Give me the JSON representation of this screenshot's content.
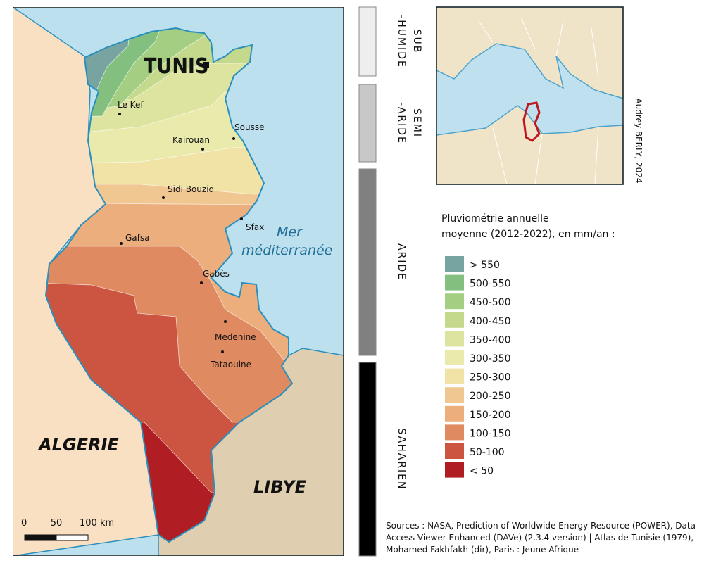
{
  "map": {
    "capital": "TUNIS",
    "cities": [
      "Le Kef",
      "Kairouan",
      "Sousse",
      "Sidi Bouzid",
      "Sfax",
      "Gafsa",
      "Gabès",
      "Medenine",
      "Tataouine"
    ],
    "sea": [
      "Mer",
      "méditerranée"
    ],
    "countries": [
      "ALGERIE",
      "LIBYE"
    ],
    "scale": [
      "0",
      "50",
      "100 km"
    ]
  },
  "climate_zones": [
    {
      "lines": [
        "SUB",
        "-HUMIDE"
      ],
      "color": "#eeeeee"
    },
    {
      "lines": [
        "SEMI",
        "-ARIDE"
      ],
      "color": "#c8c8c8"
    },
    {
      "lines": [
        "ARIDE"
      ],
      "color": "#808080"
    },
    {
      "lines": [
        "SAHARIEN"
      ],
      "color": "#000000"
    }
  ],
  "credit": "Audrey BERLY, 2024",
  "legend": {
    "title": [
      "Pluviométrie annuelle",
      "moyenne (2012-2022), en mm/an :"
    ],
    "items": [
      {
        "label": "> 550",
        "color": "#77a3a1"
      },
      {
        "label": "500-550",
        "color": "#83c07f"
      },
      {
        "label": "450-500",
        "color": "#a4cf82"
      },
      {
        "label": "400-450",
        "color": "#c5d98d"
      },
      {
        "label": "350-400",
        "color": "#dce4a0"
      },
      {
        "label": "300-350",
        "color": "#e9eaac"
      },
      {
        "label": "250-300",
        "color": "#f1e3a5"
      },
      {
        "label": "200-250",
        "color": "#f1c791"
      },
      {
        "label": "150-200",
        "color": "#edae7d"
      },
      {
        "label": "100-150",
        "color": "#df8a60"
      },
      {
        "label": "50-100",
        "color": "#cb5541"
      },
      {
        "label": "< 50",
        "color": "#b01e24"
      }
    ]
  },
  "sources": [
    "Sources : NASA, Prediction of Worldwide Energy Resource (POWER), Data",
    "Access Viewer Enhanced (DAVe) (2.3.4 version) | Atlas de Tunisie (1979),",
    "Mohamed Fakhfakh (dir), Paris : Jeune Afrique"
  ]
}
